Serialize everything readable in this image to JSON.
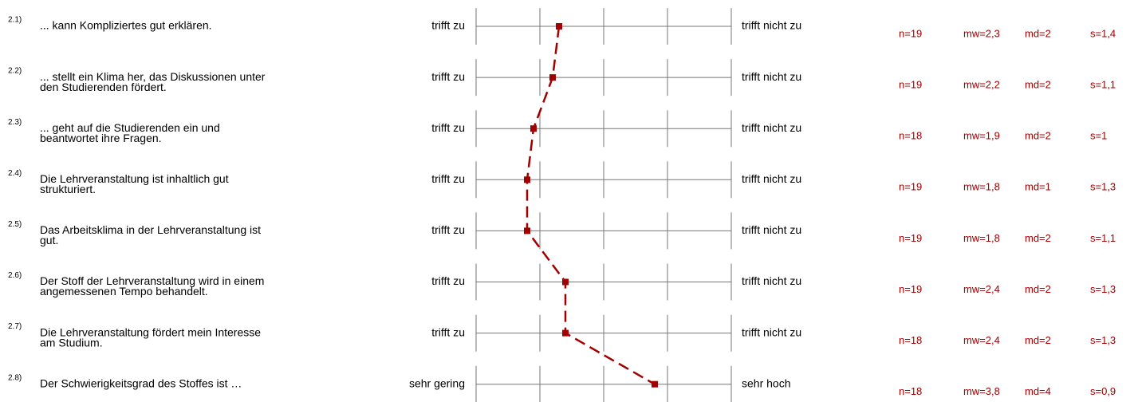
{
  "chart_data": {
    "type": "profile",
    "xlim": [
      1,
      5
    ],
    "xticks": [
      1,
      2,
      3,
      4,
      5
    ],
    "color": "#a00000",
    "items": [
      {
        "number": "2.1)",
        "text": [
          "... kann Kompliziertes gut erklären."
        ],
        "left": "trifft zu",
        "right": "trifft nicht zu",
        "value": 2.3,
        "stats": [
          "n=19",
          "mw=2,3",
          "md=2",
          "s=1,4"
        ]
      },
      {
        "number": "2.2)",
        "text": [
          "... stellt ein Klima her, das Diskussionen unter",
          "den Studierenden fördert."
        ],
        "left": "trifft zu",
        "right": "trifft nicht zu",
        "value": 2.2,
        "stats": [
          "n=19",
          "mw=2,2",
          "md=2",
          "s=1,1"
        ]
      },
      {
        "number": "2.3)",
        "text": [
          "... geht auf die Studierenden ein und",
          "beantwortet ihre Fragen."
        ],
        "left": "trifft zu",
        "right": "trifft nicht zu",
        "value": 1.9,
        "stats": [
          "n=18",
          "mw=1,9",
          "md=2",
          "s=1"
        ]
      },
      {
        "number": "2.4)",
        "text": [
          "Die Lehrveranstaltung ist inhaltlich gut",
          "strukturiert."
        ],
        "left": "trifft zu",
        "right": "trifft nicht zu",
        "value": 1.8,
        "stats": [
          "n=19",
          "mw=1,8",
          "md=1",
          "s=1,3"
        ]
      },
      {
        "number": "2.5)",
        "text": [
          "Das Arbeitsklima in der Lehrveranstaltung ist",
          "gut."
        ],
        "left": "trifft zu",
        "right": "trifft nicht zu",
        "value": 1.8,
        "stats": [
          "n=19",
          "mw=1,8",
          "md=2",
          "s=1,1"
        ]
      },
      {
        "number": "2.6)",
        "text": [
          "Der Stoff der Lehrveranstaltung wird in einem",
          "angemessenen Tempo behandelt."
        ],
        "left": "trifft zu",
        "right": "trifft nicht zu",
        "value": 2.4,
        "stats": [
          "n=19",
          "mw=2,4",
          "md=2",
          "s=1,3"
        ]
      },
      {
        "number": "2.7)",
        "text": [
          "Die Lehrveranstaltung fördert mein Interesse",
          "am Studium."
        ],
        "left": "trifft zu",
        "right": "trifft nicht zu",
        "value": 2.4,
        "stats": [
          "n=18",
          "mw=2,4",
          "md=2",
          "s=1,3"
        ]
      },
      {
        "number": "2.8)",
        "text": [
          "Der Schwierigkeitsgrad des Stoffes ist …"
        ],
        "left": "sehr gering",
        "right": "sehr hoch",
        "value": 3.8,
        "stats": [
          "n=18",
          "mw=3,8",
          "md=4",
          "s=0,9"
        ]
      }
    ]
  }
}
